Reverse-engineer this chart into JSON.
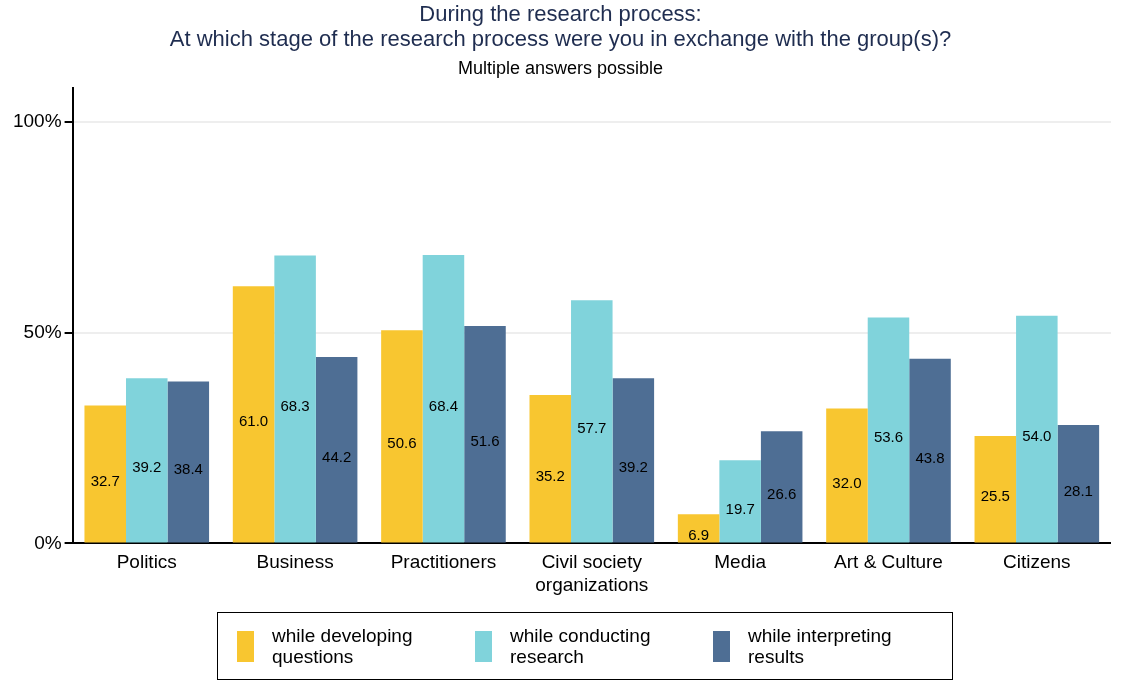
{
  "chart_data": {
    "type": "bar",
    "title": "During the research process:\nAt which stage of the research process were you in exchange with the group(s)?",
    "subtitle": "Multiple answers possible",
    "categories": [
      "Politics",
      "Business",
      "Practitioners",
      "Civil society organizations",
      "Media",
      "Art & Culture",
      "Citizens"
    ],
    "series": [
      {
        "name": "while developing questions",
        "color": "#f8c630",
        "values": [
          32.7,
          61.0,
          50.6,
          35.2,
          6.9,
          32.0,
          25.5
        ],
        "value_labels": [
          "32.7",
          "61.0",
          "50.6",
          "35.2",
          "6.9",
          "32.0",
          "25.5"
        ]
      },
      {
        "name": "while conducting research",
        "color": "#80d3db",
        "values": [
          39.2,
          68.3,
          68.4,
          57.7,
          19.7,
          53.6,
          54.0
        ],
        "value_labels": [
          "39.2",
          "68.3",
          "68.4",
          "57.7",
          "19.7",
          "53.6",
          "54.0"
        ]
      },
      {
        "name": "while interpreting results",
        "color": "#4e6e94",
        "values": [
          38.4,
          44.2,
          51.6,
          39.2,
          26.6,
          43.8,
          28.1
        ],
        "value_labels": [
          "38.4",
          "44.2",
          "51.6",
          "39.2",
          "26.6",
          "43.8",
          "28.1"
        ]
      }
    ],
    "ylim": [
      0,
      108
    ],
    "yticks": [
      {
        "value": 0,
        "label": "0%"
      },
      {
        "value": 50,
        "label": "50%"
      },
      {
        "value": 100,
        "label": "100%"
      }
    ],
    "grid": "y",
    "legend": "bottom"
  }
}
